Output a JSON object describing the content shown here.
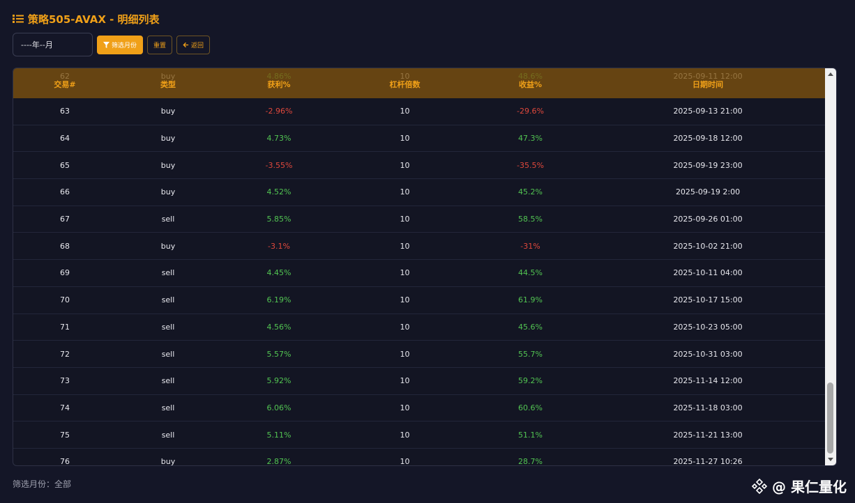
{
  "page": {
    "title": "策略505-AVAX - 明细列表"
  },
  "toolbar": {
    "month_placeholder": "----年--月",
    "filter_label": "筛选月份",
    "reset_label": "重置",
    "back_label": "返回"
  },
  "table": {
    "headers": [
      "交易#",
      "类型",
      "获利%",
      "杠杆倍数",
      "收益%",
      "日期时间"
    ],
    "rows": [
      {
        "id": "62",
        "type": "buy",
        "profit": "4.86%",
        "leverage": "10",
        "yield": "48.6%",
        "datetime": "2025-09-11 12:00",
        "sign": "pos"
      },
      {
        "id": "63",
        "type": "buy",
        "profit": "-2.96%",
        "leverage": "10",
        "yield": "-29.6%",
        "datetime": "2025-09-13 21:00",
        "sign": "neg"
      },
      {
        "id": "64",
        "type": "buy",
        "profit": "4.73%",
        "leverage": "10",
        "yield": "47.3%",
        "datetime": "2025-09-18 12:00",
        "sign": "pos"
      },
      {
        "id": "65",
        "type": "buy",
        "profit": "-3.55%",
        "leverage": "10",
        "yield": "-35.5%",
        "datetime": "2025-09-19 23:00",
        "sign": "neg"
      },
      {
        "id": "66",
        "type": "buy",
        "profit": "4.52%",
        "leverage": "10",
        "yield": "45.2%",
        "datetime": "2025-09-19 2:00",
        "sign": "pos"
      },
      {
        "id": "67",
        "type": "sell",
        "profit": "5.85%",
        "leverage": "10",
        "yield": "58.5%",
        "datetime": "2025-09-26 01:00",
        "sign": "pos"
      },
      {
        "id": "68",
        "type": "buy",
        "profit": "-3.1%",
        "leverage": "10",
        "yield": "-31%",
        "datetime": "2025-10-02 21:00",
        "sign": "neg"
      },
      {
        "id": "69",
        "type": "sell",
        "profit": "4.45%",
        "leverage": "10",
        "yield": "44.5%",
        "datetime": "2025-10-11 04:00",
        "sign": "pos"
      },
      {
        "id": "70",
        "type": "sell",
        "profit": "6.19%",
        "leverage": "10",
        "yield": "61.9%",
        "datetime": "2025-10-17 15:00",
        "sign": "pos"
      },
      {
        "id": "71",
        "type": "sell",
        "profit": "4.56%",
        "leverage": "10",
        "yield": "45.6%",
        "datetime": "2025-10-23 05:00",
        "sign": "pos"
      },
      {
        "id": "72",
        "type": "sell",
        "profit": "5.57%",
        "leverage": "10",
        "yield": "55.7%",
        "datetime": "2025-10-31 03:00",
        "sign": "pos"
      },
      {
        "id": "73",
        "type": "sell",
        "profit": "5.92%",
        "leverage": "10",
        "yield": "59.2%",
        "datetime": "2025-11-14 12:00",
        "sign": "pos"
      },
      {
        "id": "74",
        "type": "sell",
        "profit": "6.06%",
        "leverage": "10",
        "yield": "60.6%",
        "datetime": "2025-11-18 03:00",
        "sign": "pos"
      },
      {
        "id": "75",
        "type": "sell",
        "profit": "5.11%",
        "leverage": "10",
        "yield": "51.1%",
        "datetime": "2025-11-21 13:00",
        "sign": "pos"
      },
      {
        "id": "76",
        "type": "buy",
        "profit": "2.87%",
        "leverage": "10",
        "yield": "28.7%",
        "datetime": "2025-11-27 10:26",
        "sign": "pos"
      }
    ]
  },
  "footer": {
    "filter_status": "筛选月份：全部"
  },
  "watermark": {
    "text": "@ 果仁量化"
  },
  "colors": {
    "accent": "#f0a018",
    "positive": "#52c452",
    "negative": "#e0483c",
    "background": "#141627"
  },
  "icons": [
    "list-icon",
    "filter-icon",
    "arrow-left-icon",
    "binance-logo-icon"
  ]
}
